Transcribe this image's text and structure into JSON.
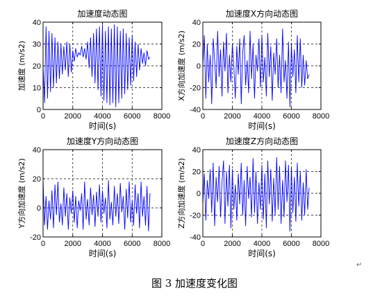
{
  "figure": {
    "caption": "图 3  加速度变化图",
    "caption_mark": "↵",
    "paragraph_mark": "↵"
  },
  "chart_data": [
    {
      "type": "line",
      "title": "加速度动态图",
      "xlabel": "时间(s)",
      "ylabel": "加速度 (m/s2)",
      "xlim": [
        0,
        8000
      ],
      "ylim": [
        0,
        40
      ],
      "xticks": [
        0,
        2000,
        4000,
        6000,
        8000
      ],
      "yticks": [
        0,
        10,
        20,
        30,
        40
      ],
      "grid": true,
      "line_color": "#0000ff",
      "series": [
        {
          "x": [
            0,
            100,
            200,
            300,
            400,
            500,
            600,
            700,
            800,
            900,
            1000,
            1100,
            1200,
            1300,
            1400,
            1500,
            1600,
            1700,
            1800,
            1900,
            2000,
            2100,
            2200,
            2300,
            2400,
            2500,
            2600,
            2700,
            2800,
            2900,
            3000,
            3100,
            3200,
            3300,
            3400,
            3500,
            3600,
            3700,
            3800,
            3900,
            4000,
            4100,
            4200,
            4300,
            4400,
            4500,
            4600,
            4700,
            4800,
            4900,
            5000,
            5100,
            5200,
            5300,
            5400,
            5500,
            5600,
            5700,
            5800,
            5900,
            6000,
            6100,
            6200,
            6300,
            6400,
            6500,
            6600,
            6700,
            6800,
            6900,
            7000,
            7100,
            7200
          ],
          "y": [
            20,
            3,
            38,
            5,
            36,
            8,
            35,
            10,
            33,
            12,
            31,
            14,
            30,
            16,
            29,
            18,
            31,
            15,
            30,
            17,
            27,
            22,
            28,
            24,
            26,
            25,
            29,
            24,
            28,
            23,
            31,
            19,
            33,
            15,
            35,
            12,
            37,
            9,
            38,
            6,
            39,
            4,
            36,
            3,
            38,
            2,
            37,
            3,
            39,
            1,
            38,
            3,
            36,
            5,
            37,
            7,
            35,
            9,
            33,
            11,
            34,
            13,
            31,
            15,
            30,
            18,
            28,
            21,
            26,
            20,
            27,
            23,
            24
          ]
        }
      ]
    },
    {
      "type": "line",
      "title": "加速度X方向动态图",
      "xlabel": "时间(s)",
      "ylabel": "X方向加速度 (m/s2)",
      "xlim": [
        0,
        8000
      ],
      "ylim": [
        -40,
        40
      ],
      "xticks": [
        0,
        2000,
        4000,
        6000,
        8000
      ],
      "yticks": [
        -40,
        -20,
        0,
        20,
        40
      ],
      "grid": true,
      "line_color": "#0000ff",
      "series": [
        {
          "x": [
            0,
            100,
            200,
            300,
            400,
            500,
            600,
            700,
            800,
            900,
            1000,
            1100,
            1200,
            1300,
            1400,
            1500,
            1600,
            1700,
            1800,
            1900,
            2000,
            2100,
            2200,
            2300,
            2400,
            2500,
            2600,
            2700,
            2800,
            2900,
            3000,
            3100,
            3200,
            3300,
            3400,
            3500,
            3600,
            3700,
            3800,
            3900,
            4000,
            4100,
            4200,
            4300,
            4400,
            4500,
            4600,
            4700,
            4800,
            4900,
            5000,
            5100,
            5200,
            5300,
            5400,
            5500,
            5600,
            5700,
            5800,
            5900,
            6000,
            6100,
            6200,
            6300,
            6400,
            6500,
            6600,
            6700,
            6800,
            6900,
            7000,
            7100,
            7200
          ],
          "y": [
            0,
            28,
            -30,
            20,
            -15,
            10,
            -35,
            25,
            5,
            -20,
            32,
            -10,
            15,
            -28,
            22,
            -5,
            30,
            -25,
            10,
            -15,
            20,
            0,
            -30,
            18,
            -8,
            25,
            -35,
            12,
            28,
            -18,
            5,
            -25,
            32,
            -12,
            20,
            -30,
            10,
            -5,
            25,
            -20,
            28,
            -15,
            8,
            -28,
            30,
            -10,
            18,
            -32,
            12,
            -8,
            25,
            -20,
            10,
            -25,
            34,
            -15,
            5,
            -30,
            22,
            -38,
            20,
            -10,
            15,
            -25,
            28,
            -15,
            25,
            -20,
            10,
            -18,
            5,
            -12,
            -8
          ]
        }
      ]
    },
    {
      "type": "line",
      "title": "加速度Y方向动态图",
      "xlabel": "时间(s)",
      "ylabel": "Y方向加速度 (m/s2)",
      "xlim": [
        0,
        8000
      ],
      "ylim": [
        -20,
        40
      ],
      "xticks": [
        0,
        2000,
        4000,
        6000,
        8000
      ],
      "yticks": [
        -20,
        0,
        20,
        40
      ],
      "grid": true,
      "line_color": "#0000ff",
      "series": [
        {
          "x": [
            0,
            100,
            200,
            300,
            400,
            500,
            600,
            700,
            800,
            900,
            1000,
            1100,
            1200,
            1300,
            1400,
            1500,
            1600,
            1700,
            1800,
            1900,
            2000,
            2100,
            2200,
            2300,
            2400,
            2500,
            2600,
            2700,
            2800,
            2900,
            3000,
            3100,
            3200,
            3300,
            3400,
            3500,
            3600,
            3700,
            3800,
            3900,
            4000,
            4100,
            4200,
            4300,
            4400,
            4500,
            4600,
            4700,
            4800,
            4900,
            5000,
            5100,
            5200,
            5300,
            5400,
            5500,
            5600,
            5700,
            5800,
            5900,
            6000,
            6100,
            6200,
            6300,
            6400,
            6500,
            6600,
            6700,
            6800,
            6900,
            7000,
            7100,
            7200
          ],
          "y": [
            19,
            -12,
            8,
            -15,
            5,
            -8,
            12,
            -14,
            16,
            -5,
            18,
            -10,
            3,
            -12,
            14,
            -6,
            10,
            -15,
            7,
            -4,
            12,
            -10,
            8,
            -14,
            5,
            -2,
            10,
            -15,
            18,
            -8,
            6,
            -12,
            14,
            -5,
            9,
            -13,
            11,
            -6,
            16,
            -10,
            12,
            -4,
            7,
            -14,
            19,
            -8,
            4,
            -12,
            15,
            -6,
            10,
            -11,
            17,
            -3,
            8,
            -15,
            13,
            -7,
            18,
            -10,
            5,
            -12,
            16,
            -4,
            10,
            -14,
            18,
            -6,
            8,
            -12,
            15,
            -16,
            10
          ]
        }
      ]
    },
    {
      "type": "line",
      "title": "加速度Z方向动态图",
      "xlabel": "时间(s)",
      "ylabel": "Z方向加速度 (m/s2)",
      "xlim": [
        0,
        8000
      ],
      "ylim": [
        -40,
        40
      ],
      "xticks": [
        0,
        2000,
        4000,
        6000,
        8000
      ],
      "yticks": [
        -40,
        -20,
        0,
        20,
        40
      ],
      "grid": true,
      "line_color": "#0000ff",
      "series": [
        {
          "x": [
            0,
            100,
            200,
            300,
            400,
            500,
            600,
            700,
            800,
            900,
            1000,
            1100,
            1200,
            1300,
            1400,
            1500,
            1600,
            1700,
            1800,
            1900,
            2000,
            2100,
            2200,
            2300,
            2400,
            2500,
            2600,
            2700,
            2800,
            2900,
            3000,
            3100,
            3200,
            3300,
            3400,
            3500,
            3600,
            3700,
            3800,
            3900,
            4000,
            4100,
            4200,
            4300,
            4400,
            4500,
            4600,
            4700,
            4800,
            4900,
            5000,
            5100,
            5200,
            5300,
            5400,
            5500,
            5600,
            5700,
            5800,
            5900,
            6000,
            6100,
            6200,
            6300,
            6400,
            6500,
            6600,
            6700,
            6800,
            6900,
            7000,
            7100,
            7200
          ],
          "y": [
            -10,
            18,
            -25,
            12,
            -5,
            22,
            -18,
            28,
            -30,
            15,
            -8,
            25,
            -22,
            10,
            30,
            -28,
            20,
            -12,
            26,
            -32,
            22,
            -15,
            8,
            -25,
            18,
            -10,
            28,
            -20,
            12,
            -30,
            25,
            -5,
            15,
            -22,
            32,
            -18,
            20,
            -28,
            10,
            -15,
            26,
            -24,
            18,
            -32,
            30,
            -10,
            22,
            -26,
            14,
            -20,
            33,
            -15,
            25,
            -28,
            12,
            -22,
            30,
            -8,
            26,
            -35,
            24,
            -18,
            15,
            -26,
            28,
            -12,
            20,
            -25,
            10,
            -20,
            22,
            -15,
            5
          ]
        }
      ]
    }
  ]
}
